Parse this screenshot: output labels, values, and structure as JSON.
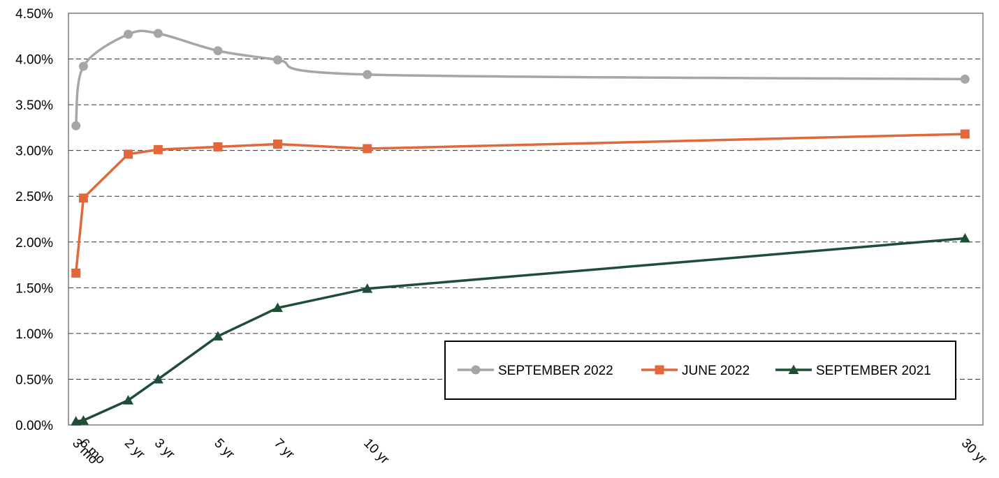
{
  "chart_data": {
    "type": "line",
    "title": "",
    "xlabel": "",
    "ylabel": "",
    "x_categories": [
      "3 mo",
      "6 mo",
      "2 yr",
      "3 yr",
      "5 yr",
      "7 yr",
      "10 yr",
      "30 yr"
    ],
    "x_years": [
      0.25,
      0.5,
      2,
      3,
      5,
      7,
      10,
      30
    ],
    "ylim": [
      0,
      4.5
    ],
    "y_ticks": [
      "0.00%",
      "0.50%",
      "1.00%",
      "1.50%",
      "2.00%",
      "2.50%",
      "3.00%",
      "3.50%",
      "4.00%",
      "4.50%"
    ],
    "y_tick_values": [
      0,
      0.5,
      1,
      1.5,
      2,
      2.5,
      3,
      3.5,
      4,
      4.5
    ],
    "grid": "horizontal dashed",
    "legend_position": "bottom-right",
    "series": [
      {
        "name": "SEPTEMBER 2022",
        "color": "#a6a6a6",
        "marker": "circle",
        "smooth": true,
        "values": [
          3.27,
          3.92,
          4.27,
          4.28,
          4.09,
          3.99,
          3.83,
          3.78
        ]
      },
      {
        "name": "JUNE 2022",
        "color": "#e2673a",
        "marker": "square",
        "smooth": false,
        "values": [
          1.66,
          2.48,
          2.96,
          3.01,
          3.04,
          3.07,
          3.02,
          3.18
        ]
      },
      {
        "name": "SEPTEMBER 2021",
        "color": "#1f4e36",
        "marker": "triangle",
        "smooth": false,
        "values": [
          0.04,
          0.05,
          0.27,
          0.5,
          0.97,
          1.28,
          1.49,
          2.04
        ]
      }
    ]
  }
}
